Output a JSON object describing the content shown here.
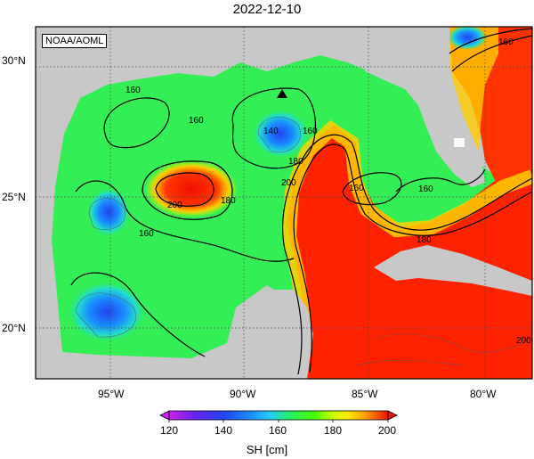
{
  "title": "2022-12-10",
  "credit": "NOAA/AOML",
  "lat_labels": [
    "30°N",
    "25°N",
    "20°N"
  ],
  "lon_labels": [
    "95°W",
    "90°W",
    "85°W",
    "80°W"
  ],
  "contour_labels": [
    "160",
    "160",
    "160",
    "140",
    "160",
    "180",
    "200",
    "200",
    "180",
    "160",
    "160",
    "160",
    "180",
    "200"
  ],
  "colorbar": {
    "label": "SH [cm]",
    "ticks": [
      "120",
      "140",
      "160",
      "180",
      "200"
    ],
    "colors": [
      "#cc22ee",
      "#4422ee",
      "#1a8cff",
      "#22ccff",
      "#22ee66",
      "#44ff00",
      "#ccff00",
      "#ffe600",
      "#ff9900",
      "#ff3300",
      "#ee1100"
    ]
  },
  "marker": "buoy-triangle-icon",
  "colors": {
    "land": "#c8c8c8",
    "warm_core": "#ff2200",
    "ocean_base": "#33ee55"
  }
}
